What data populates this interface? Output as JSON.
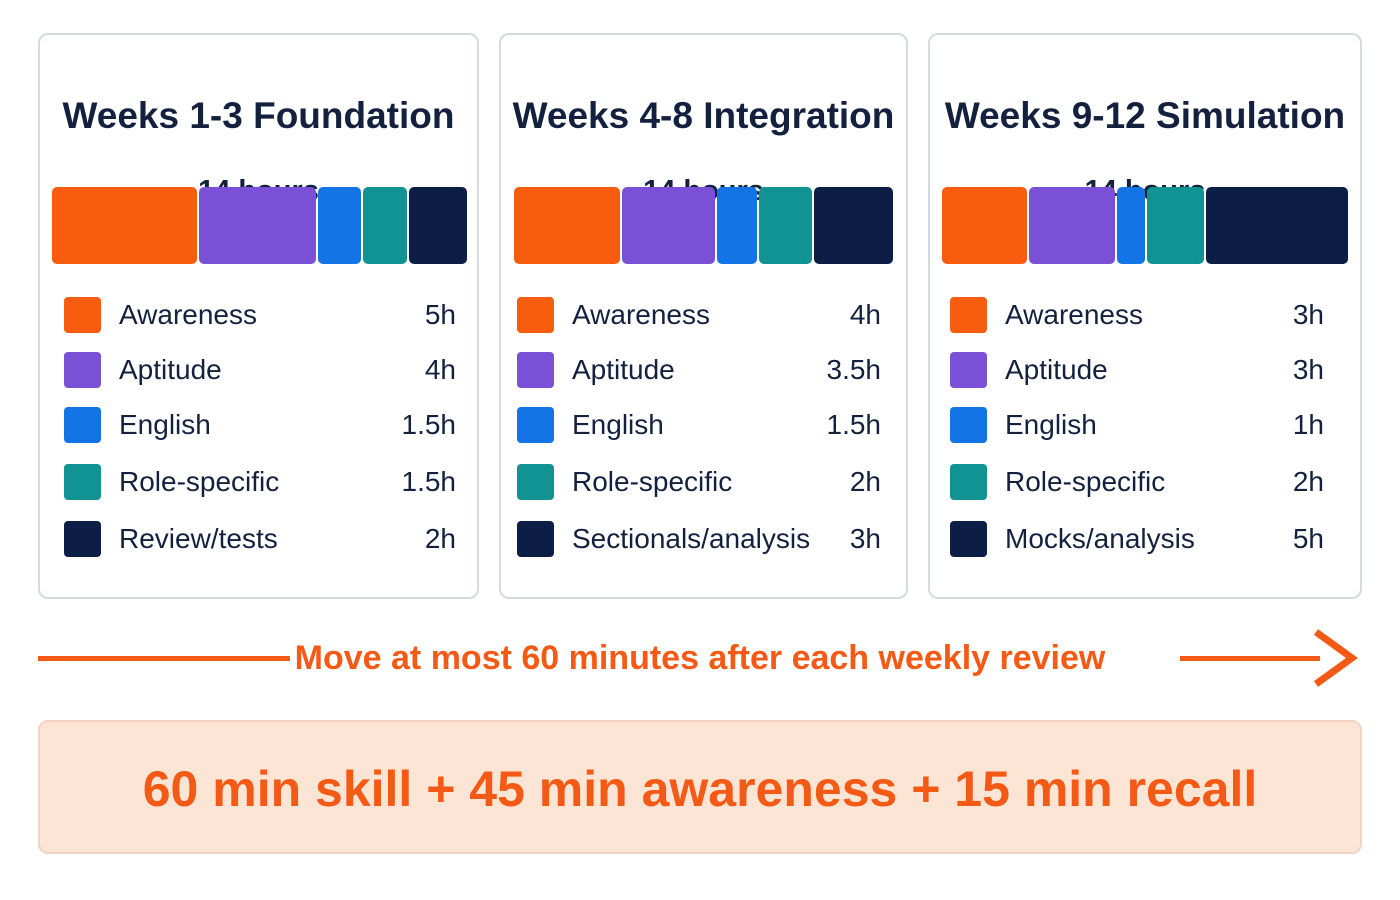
{
  "colors": {
    "orange": "#f85c0f",
    "purple": "#7a50d6",
    "blue": "#1374e6",
    "teal": "#119394",
    "navy": "#0c1e45",
    "accent": "#f45a15",
    "panel": "#fde5d6"
  },
  "chart_data": {
    "type": "bar",
    "stacked": true,
    "orientation": "horizontal",
    "panels": [
      {
        "title": "Weeks 1-3 Foundation",
        "total_label": "14 hours",
        "total_hours": 14,
        "series": [
          {
            "name": "Awareness",
            "value": 5,
            "label": "5h",
            "color": "#f85c0f"
          },
          {
            "name": "Aptitude",
            "value": 4,
            "label": "4h",
            "color": "#7a50d6"
          },
          {
            "name": "English",
            "value": 1.5,
            "label": "1.5h",
            "color": "#1374e6"
          },
          {
            "name": "Role-specific",
            "value": 1.5,
            "label": "1.5h",
            "color": "#119394"
          },
          {
            "name": "Review/tests",
            "value": 2,
            "label": "2h",
            "color": "#0c1e45"
          }
        ]
      },
      {
        "title": "Weeks 4-8 Integration",
        "total_label": "14 hours",
        "total_hours": 14,
        "series": [
          {
            "name": "Awareness",
            "value": 4,
            "label": "4h",
            "color": "#f85c0f"
          },
          {
            "name": "Aptitude",
            "value": 3.5,
            "label": "3.5h",
            "color": "#7a50d6"
          },
          {
            "name": "English",
            "value": 1.5,
            "label": "1.5h",
            "color": "#1374e6"
          },
          {
            "name": "Role-specific",
            "value": 2,
            "label": "2h",
            "color": "#119394"
          },
          {
            "name": "Sectionals/analysis",
            "value": 3,
            "label": "3h",
            "color": "#0c1e45"
          }
        ]
      },
      {
        "title": "Weeks 9-12 Simulation",
        "total_label": "14 hours",
        "total_hours": 14,
        "series": [
          {
            "name": "Awareness",
            "value": 3,
            "label": "3h",
            "color": "#f85c0f"
          },
          {
            "name": "Aptitude",
            "value": 3,
            "label": "3h",
            "color": "#7a50d6"
          },
          {
            "name": "English",
            "value": 1,
            "label": "1h",
            "color": "#1374e6"
          },
          {
            "name": "Role-specific",
            "value": 2,
            "label": "2h",
            "color": "#119394"
          },
          {
            "name": "Mocks/analysis",
            "value": 5,
            "label": "5h",
            "color": "#0c1e45"
          }
        ]
      }
    ]
  },
  "footer": {
    "note": "Move at most 60 minutes after each weekly review",
    "formula": "60 min skill + 45 min awareness + 15 min recall"
  }
}
